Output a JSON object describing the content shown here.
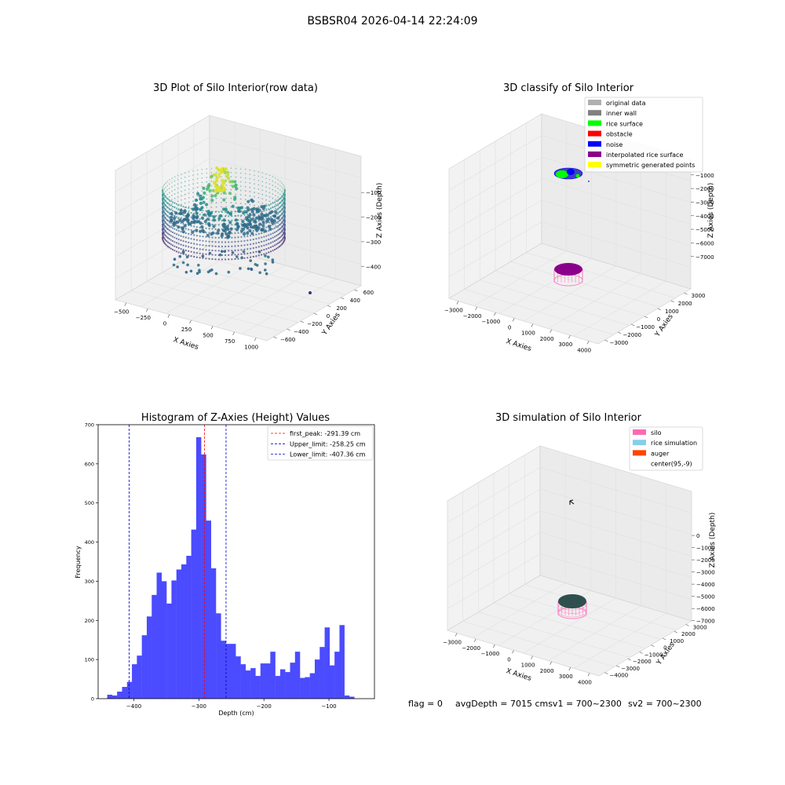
{
  "suptitle": "BSBSR04 2026-04-14 22:24:09",
  "colors": {
    "hist_fill": "#4b4bff",
    "first_peak": "#ff0000",
    "limit": "#0000cc",
    "pane": "#f2f2f2",
    "silo_pink": "#ff69b4",
    "rice_green": "#00ff00",
    "noise_blue": "#0000ff",
    "interp_purple": "#8b008b",
    "rice_sim": "#87ceeb",
    "auger": "#ff4500",
    "original": "#b0b0b0",
    "inner_wall": "#808080",
    "yellow": "#ffff00",
    "obstacle": "#ff0000",
    "sim_top": "#2f4f4f"
  },
  "panels": {
    "raw": {
      "title": "3D Plot of Silo Interior(row data)",
      "xlabel": "X Axies",
      "ylabel": "Y Axies",
      "zlabel": "Z Axies (Depth)",
      "xticks": [
        "−500",
        "−250",
        "0",
        "250",
        "500",
        "750",
        "1000"
      ],
      "yticks": [
        "600",
        "400",
        "200",
        "0",
        "−200",
        "−400",
        "−600"
      ],
      "zticks": [
        "−100",
        "−200",
        "−300",
        "−400"
      ]
    },
    "classify": {
      "title": "3D classify of Silo Interior",
      "xlabel": "X Axies",
      "ylabel": "Y Axies",
      "zlabel": "Z Axies (Depth)",
      "xticks": [
        "−3000",
        "−2000",
        "−1000",
        "0",
        "1000",
        "2000",
        "3000",
        "4000"
      ],
      "yticks": [
        "3000",
        "2000",
        "1000",
        "0",
        "−1000",
        "−2000",
        "−3000"
      ],
      "zticks": [
        "−1000",
        "−2000",
        "−3000",
        "−4000",
        "−5000",
        "−6000",
        "−7000"
      ],
      "legend": [
        {
          "label": "original data",
          "color": "#b0b0b0"
        },
        {
          "label": "inner wall",
          "color": "#808080"
        },
        {
          "label": "rice surface",
          "color": "#00ff00"
        },
        {
          "label": "obstacle",
          "color": "#ff0000"
        },
        {
          "label": "noise",
          "color": "#0000ff"
        },
        {
          "label": "interpolated rice surface",
          "color": "#8b008b"
        },
        {
          "label": "symmetric generated points",
          "color": "#ffff00"
        }
      ]
    },
    "simulation": {
      "title": "3D simulation of Silo Interior",
      "xlabel": "X Axies",
      "ylabel": "Y Axies",
      "zlabel": "Z Axies (Depth)",
      "xticks": [
        "−3000",
        "−2000",
        "−1000",
        "0",
        "1000",
        "2000",
        "3000",
        "4000"
      ],
      "yticks": [
        "3000",
        "2000",
        "1000",
        "0",
        "−1000",
        "−2000",
        "−3000",
        "−4000"
      ],
      "zticks": [
        "0",
        "−1000",
        "−2000",
        "−3000",
        "−4000",
        "−5000",
        "−6000",
        "−7000"
      ],
      "legend": [
        {
          "label": "silo",
          "color": "#ff69b4"
        },
        {
          "label": "rice simulation",
          "color": "#87ceeb"
        },
        {
          "label": "auger",
          "color": "#ff4500"
        },
        {
          "label": "center(95,-9)",
          "color": "none"
        }
      ],
      "footer": {
        "flag": "flag = 0",
        "avg": "avgDepth = 7015 cmsv1 = 700~2300",
        "sv2": "sv2 = 700~2300"
      }
    }
  },
  "chart_data": {
    "type": "bar",
    "title": "Histogram of Z-Axies (Height) Values",
    "xlabel": "Depth (cm)",
    "ylabel": "Frequency",
    "xlim": [
      -455,
      -30
    ],
    "ylim": [
      0,
      700
    ],
    "xticks": [
      -400,
      -300,
      -200,
      -100
    ],
    "xtick_labels": [
      "−400",
      "−300",
      "−200",
      "−100"
    ],
    "yticks": [
      0,
      100,
      200,
      300,
      400,
      500,
      600,
      700
    ],
    "bin_width": 7.6,
    "bin_start": -441,
    "values": [
      10,
      8,
      18,
      30,
      43,
      88,
      110,
      162,
      210,
      265,
      322,
      300,
      243,
      302,
      330,
      343,
      365,
      432,
      668,
      624,
      455,
      333,
      218,
      148,
      140,
      140,
      108,
      88,
      72,
      78,
      58,
      90,
      90,
      120,
      58,
      75,
      68,
      92,
      120,
      53,
      55,
      65,
      100,
      132,
      182,
      85,
      120,
      188,
      8,
      5
    ],
    "vlines": [
      {
        "label": "first_peak: -291.39 cm",
        "x": -291.39,
        "color": "#ff0000"
      },
      {
        "label": "Upper_limit: -258.25 cm",
        "x": -258.25,
        "color": "#0000cc"
      },
      {
        "label": "Lower_limit: -407.36 cm",
        "x": -407.36,
        "color": "#0000cc"
      }
    ],
    "legend_position": "upper-right",
    "grid": false
  }
}
